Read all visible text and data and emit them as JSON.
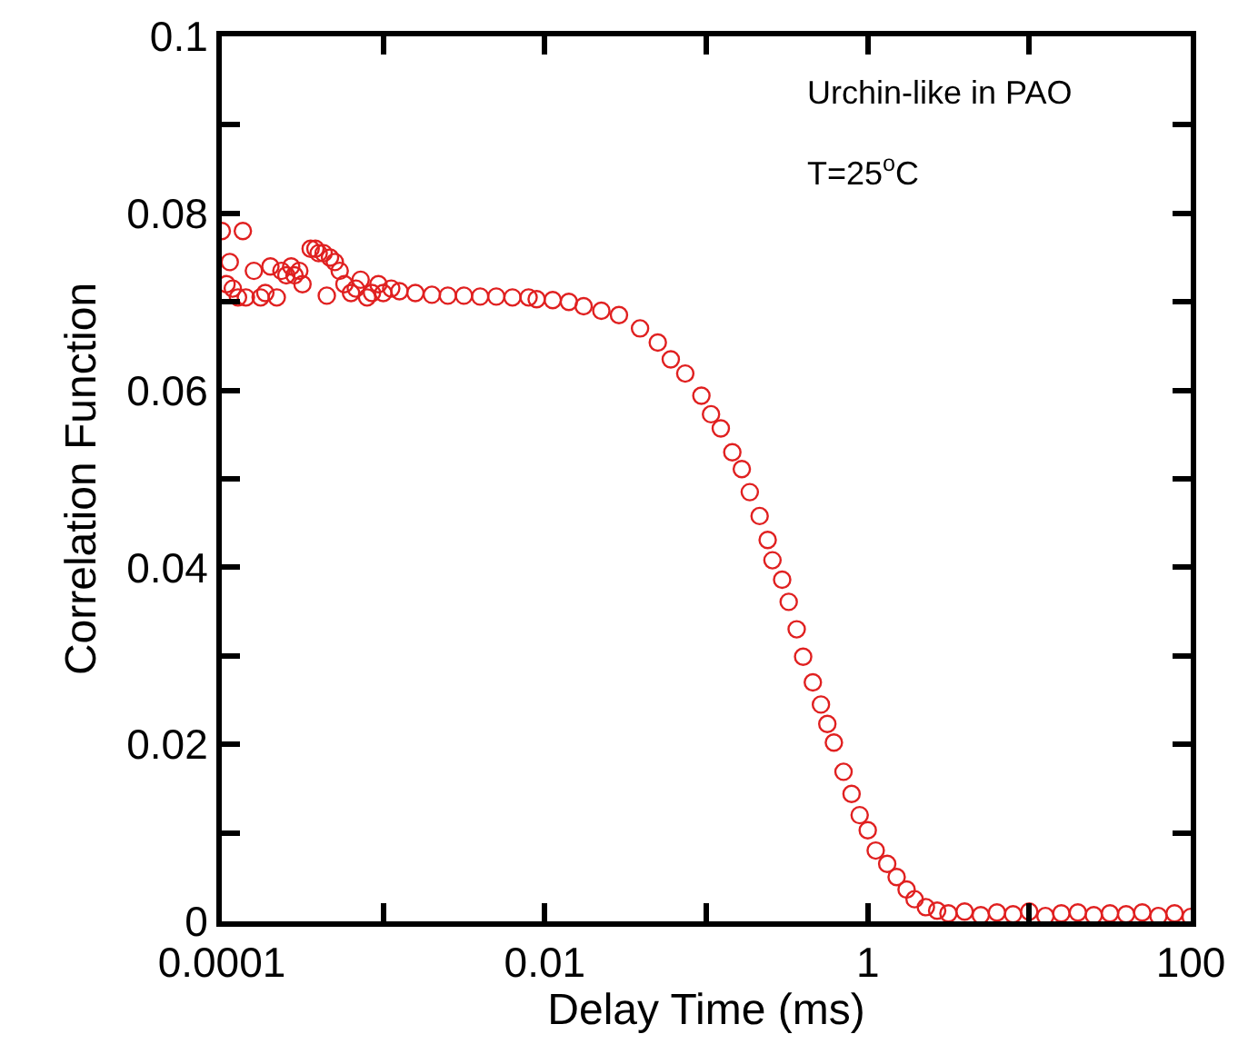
{
  "chart_data": {
    "type": "scatter",
    "xlabel": "Delay Time (ms)",
    "ylabel": "Correlation Function",
    "log": "x",
    "marker": "circle",
    "annotations": [
      "Urchin-like in PAO",
      "T=25$^{o}$C"
    ],
    "xlim": [
      0.0001,
      100
    ],
    "xticks": [
      0.0001,
      {
        "value": 0.001,
        "label": null
      },
      0.01,
      {
        "value": 0.1,
        "label": null
      },
      1,
      {
        "value": 10,
        "label": null
      },
      100
    ],
    "ylim": [
      0,
      0.1
    ],
    "yticks": [
      0,
      {
        "value": 0.01,
        "label": null
      },
      0.02,
      {
        "value": 0.03,
        "label": null
      },
      0.04,
      {
        "value": 0.05,
        "label": null
      },
      0.06,
      {
        "value": 0.07,
        "label": null
      },
      0.08,
      {
        "value": 0.09,
        "label": null
      },
      0.1
    ],
    "series": [
      {
        "color": "#e02020",
        "x": [
          0.0001,
          0.000107,
          0.000112,
          0.000117,
          0.000126,
          0.000135,
          0.000141,
          0.000158,
          0.000174,
          0.000186,
          0.0002,
          0.000219,
          0.000234,
          0.000251,
          0.000269,
          0.000282,
          0.000302,
          0.000316,
          0.000355,
          0.00038,
          0.000398,
          0.000427,
          0.000447,
          0.000468,
          0.000501,
          0.000537,
          0.000575,
          0.000631,
          0.000676,
          0.000724,
          0.000794,
          0.000851,
          0.000933,
          0.001,
          0.00112,
          0.00126,
          0.00158,
          0.002,
          0.00251,
          0.00316,
          0.00398,
          0.00501,
          0.00631,
          0.00794,
          0.00891,
          0.0112,
          0.0141,
          0.0174,
          0.0224,
          0.0288,
          0.0389,
          0.0501,
          0.0603,
          0.0741,
          0.0933,
          0.107,
          0.123,
          0.145,
          0.166,
          0.186,
          0.214,
          0.24,
          0.257,
          0.295,
          0.324,
          0.363,
          0.398,
          0.457,
          0.513,
          0.562,
          0.617,
          0.708,
          0.794,
          0.891,
          1.0,
          1.12,
          1.32,
          1.51,
          1.74,
          1.95,
          2.29,
          2.69,
          3.16,
          3.98,
          5.01,
          6.31,
          7.94,
          10,
          12.6,
          15.8,
          20,
          25.1,
          31.6,
          39.8,
          50.1,
          63.1,
          79.4,
          100
        ],
        "values": [
          0.078,
          0.072,
          0.0745,
          0.0715,
          0.0705,
          0.078,
          0.0705,
          0.0735,
          0.0705,
          0.071,
          0.074,
          0.0705,
          0.0735,
          0.073,
          0.074,
          0.073,
          0.0735,
          0.072,
          0.076,
          0.076,
          0.0755,
          0.0755,
          0.0707,
          0.075,
          0.0745,
          0.0735,
          0.072,
          0.071,
          0.0715,
          0.0725,
          0.0705,
          0.071,
          0.072,
          0.071,
          0.0715,
          0.0712,
          0.071,
          0.0708,
          0.0707,
          0.0707,
          0.0706,
          0.0706,
          0.0705,
          0.0705,
          0.0703,
          0.0702,
          0.07,
          0.0695,
          0.069,
          0.0685,
          0.067,
          0.0654,
          0.0635,
          0.0619,
          0.0594,
          0.0573,
          0.0557,
          0.053,
          0.0511,
          0.0485,
          0.0458,
          0.0431,
          0.0408,
          0.0386,
          0.0361,
          0.033,
          0.0299,
          0.027,
          0.0245,
          0.0223,
          0.0202,
          0.0169,
          0.0144,
          0.012,
          0.0103,
          0.008,
          0.0065,
          0.005,
          0.0036,
          0.0025,
          0.0016,
          0.0012,
          0.0009,
          0.0011,
          0.0007,
          0.001,
          0.0008,
          0.0011,
          0.0006,
          0.0009,
          0.001,
          0.0007,
          0.0009,
          0.0008,
          0.001,
          0.0006,
          0.0009,
          0.0005
        ]
      }
    ]
  }
}
